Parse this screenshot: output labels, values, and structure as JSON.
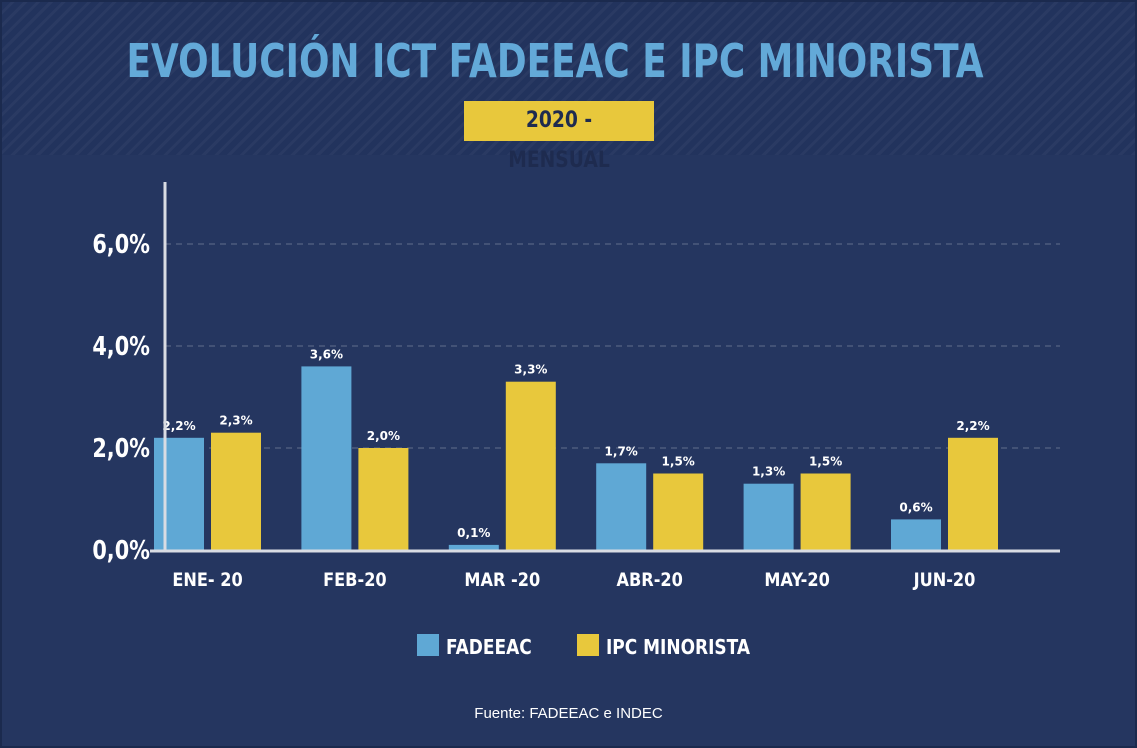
{
  "header": {
    "title": "EVOLUCIÓN ICT FADEEAC E IPC MINORISTA",
    "subtitle": "2020 - MENSUAL"
  },
  "footer": {
    "source": "Fuente: FADEEAC e INDEC"
  },
  "colors": {
    "background": "#253660",
    "fadeeac": "#5fa8d5",
    "ipc": "#e8c83c",
    "title": "#63a9d8"
  },
  "chart_data": {
    "type": "bar",
    "title": "EVOLUCIÓN ICT FADEEAC E IPC MINORISTA",
    "subtitle": "2020 - MENSUAL",
    "categories": [
      "ENE- 20",
      "FEB-20",
      "MAR -20",
      "ABR-20",
      "MAY-20",
      "JUN-20"
    ],
    "series": [
      {
        "name": "FADEEAC",
        "color": "#5fa8d5",
        "values": [
          2.2,
          3.6,
          0.1,
          1.7,
          1.3,
          0.6
        ],
        "labels": [
          "2,2%",
          "3,6%",
          "0,1%",
          "1,7%",
          "1,3%",
          "0,6%"
        ]
      },
      {
        "name": "IPC MINORISTA",
        "color": "#e8c83c",
        "values": [
          2.3,
          2.0,
          3.3,
          1.5,
          1.5,
          2.2
        ],
        "labels": [
          "2,3%",
          "2,0%",
          "3,3%",
          "1,5%",
          "1,5%",
          "2,2%"
        ]
      }
    ],
    "yticks": [
      {
        "value": 0,
        "label": "0,0%"
      },
      {
        "value": 2,
        "label": "2,0%"
      },
      {
        "value": 4,
        "label": "4,0%"
      },
      {
        "value": 6,
        "label": "6,0%"
      }
    ],
    "ylim": [
      0,
      7.2
    ],
    "grid": true,
    "legend_position": "bottom-center"
  }
}
